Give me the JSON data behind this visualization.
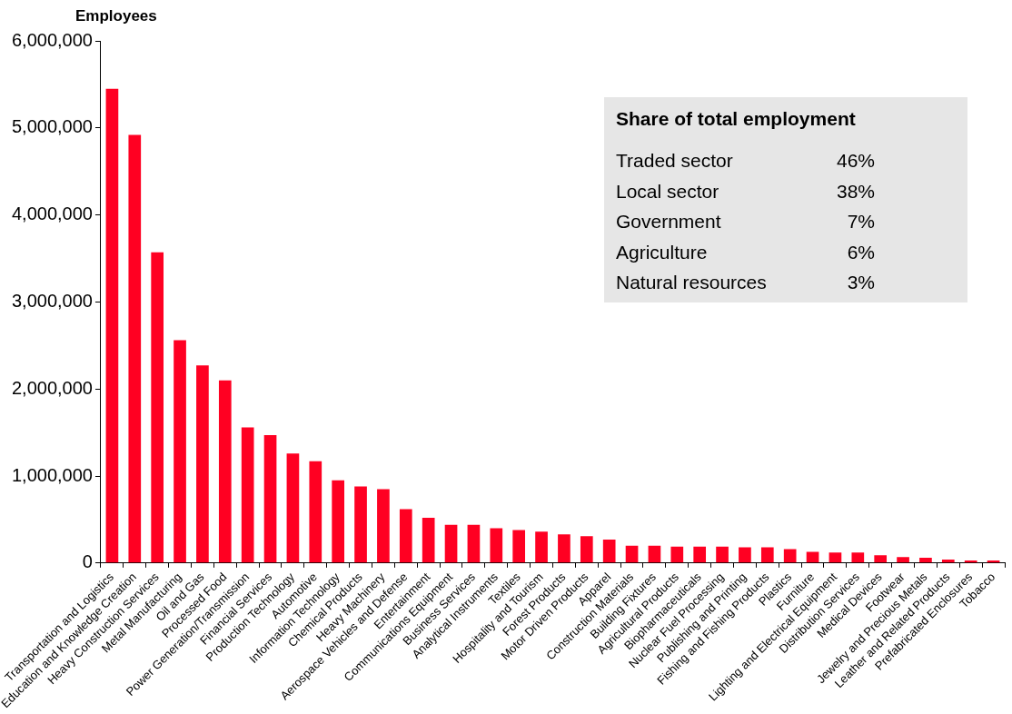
{
  "chart_data": {
    "type": "bar",
    "ylabel": "Employees",
    "categories": [
      "Transportation and Logistics",
      "Education and Knowledge Creation",
      "Heavy Construction Services",
      "Metal Manufacturing",
      "Oil and Gas",
      "Processed Food",
      "Power Generation/Transmission",
      "Financial Services",
      "Production Technology",
      "Automotive",
      "Information Technology",
      "Chemical Products",
      "Heavy Machinery",
      "Aerospace Vehicles and Defense",
      "Entertainment",
      "Communications Equipment",
      "Business Services",
      "Analytical Instruments",
      "Textiles",
      "Hospitality and Tourism",
      "Forest Products",
      "Motor Driven Products",
      "Apparel",
      "Construction Materials",
      "Building Fixtures",
      "Agricultural Products",
      "Biopharmaceuticals",
      "Nuclear Fuel Processing",
      "Publishing and Printing",
      "Fishing and Fishing Products",
      "Plastics",
      "Furniture",
      "Lighting and Electrical Equipment",
      "Distribution Services",
      "Medical Devices",
      "Footwear",
      "Jewelry and Precious Metals",
      "Leather and Related Products",
      "Prefabricated Enclosures",
      "Tobacco"
    ],
    "values": [
      5450000,
      4920000,
      3570000,
      2560000,
      2270000,
      2100000,
      1560000,
      1470000,
      1260000,
      1170000,
      950000,
      880000,
      850000,
      620000,
      520000,
      440000,
      440000,
      400000,
      380000,
      360000,
      330000,
      310000,
      270000,
      200000,
      200000,
      190000,
      190000,
      190000,
      180000,
      180000,
      160000,
      130000,
      120000,
      120000,
      90000,
      70000,
      60000,
      40000,
      30000,
      30000
    ],
    "color": "#ff0022",
    "ylim": [
      0,
      6000000
    ],
    "yticks": [
      0,
      {
        "value": 1000000,
        "label": "1,000,000"
      },
      {
        "value": 2000000,
        "label": "2,000,000"
      },
      {
        "value": 3000000,
        "label": "3,000,000"
      },
      {
        "value": 4000000,
        "label": "4,000,000"
      },
      {
        "value": 5000000,
        "label": "5,000,000"
      },
      {
        "value": 6000000,
        "label": "6,000,000"
      }
    ],
    "legend": false,
    "annotations": [
      "Share of total employment",
      "Traded sector",
      "46%",
      "Local sector",
      "38%",
      "Government",
      "7%",
      "Agriculture",
      "6%",
      "Natural resources",
      "3%"
    ]
  }
}
